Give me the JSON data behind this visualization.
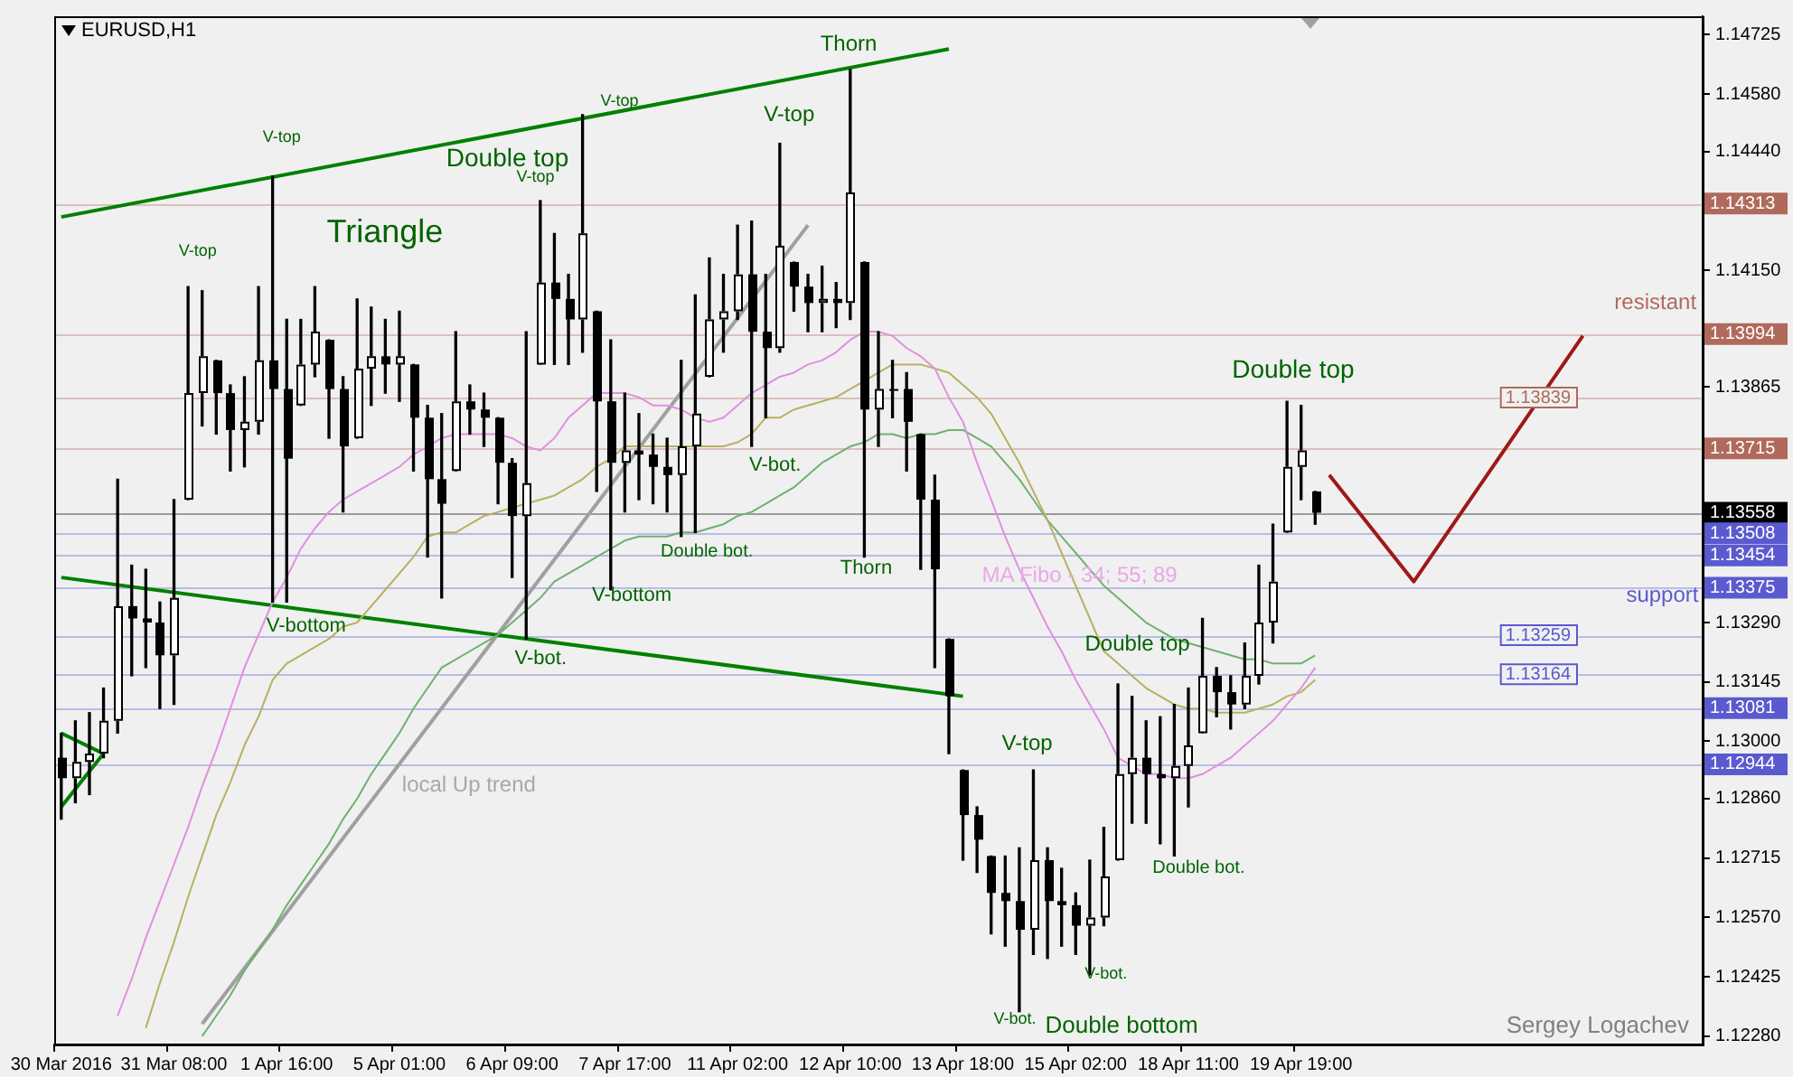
{
  "chart_data": {
    "type": "candlestick",
    "title": "EURUSD,H1",
    "categories": [
      "30 Mar 2016",
      null,
      null,
      null,
      null,
      null,
      null,
      null,
      "31 Mar 08:00",
      null,
      null,
      null,
      null,
      null,
      null,
      null,
      "1 Apr 16:00",
      null,
      null,
      null,
      null,
      null,
      null,
      null,
      "5 Apr 01:00",
      null,
      null,
      null,
      null,
      null,
      null,
      null,
      "6 Apr 09:00",
      null,
      null,
      null,
      null,
      null,
      null,
      null,
      "7 Apr 17:00",
      null,
      null,
      null,
      null,
      null,
      null,
      null,
      "11 Apr 02:00",
      null,
      null,
      null,
      null,
      null,
      null,
      null,
      "12 Apr 10:00",
      null,
      null,
      null,
      null,
      null,
      null,
      null,
      "13 Apr 18:00",
      null,
      null,
      null,
      null,
      null,
      null,
      null,
      "15 Apr 02:00",
      null,
      null,
      null,
      null,
      null,
      null,
      null,
      "18 Apr 11:00",
      null,
      null,
      null,
      null,
      null,
      null,
      null,
      "19 Apr 19:00",
      null,
      null,
      null,
      null,
      null,
      null,
      null,
      null,
      null,
      null,
      null,
      null,
      null,
      null,
      null,
      null,
      null,
      null,
      null,
      null,
      null,
      null,
      null,
      null,
      null,
      null,
      null,
      null
    ],
    "ohlc": [
      [
        1.1296,
        1.1302,
        1.1281,
        1.1291
      ],
      [
        1.1291,
        1.1305,
        1.1285,
        1.1295
      ],
      [
        1.1295,
        1.1307,
        1.1287,
        1.1297
      ],
      [
        1.1297,
        1.1313,
        1.1296,
        1.1305
      ],
      [
        1.1305,
        1.1364,
        1.1302,
        1.1333
      ],
      [
        1.1333,
        1.1343,
        1.1316,
        1.133
      ],
      [
        1.133,
        1.1342,
        1.1318,
        1.1329
      ],
      [
        1.1329,
        1.1334,
        1.1308,
        1.1321
      ],
      [
        1.1321,
        1.1359,
        1.1309,
        1.1335
      ],
      [
        1.1359,
        1.1411,
        1.1359,
        1.1385
      ],
      [
        1.1385,
        1.141,
        1.1377,
        1.1394
      ],
      [
        1.1393,
        1.1393,
        1.1375,
        1.1385
      ],
      [
        1.1385,
        1.1387,
        1.1366,
        1.1376
      ],
      [
        1.1376,
        1.1389,
        1.1367,
        1.1378
      ],
      [
        1.1378,
        1.1411,
        1.1375,
        1.1393
      ],
      [
        1.1393,
        1.1438,
        1.1334,
        1.1386
      ],
      [
        1.1386,
        1.1403,
        1.1334,
        1.1369
      ],
      [
        1.1382,
        1.1403,
        1.1382,
        1.1392
      ],
      [
        1.1392,
        1.1411,
        1.1389,
        1.14
      ],
      [
        1.1398,
        1.1398,
        1.1374,
        1.1386
      ],
      [
        1.1386,
        1.1389,
        1.1356,
        1.1372
      ],
      [
        1.1374,
        1.1408,
        1.1374,
        1.1391
      ],
      [
        1.1391,
        1.1406,
        1.1382,
        1.1394
      ],
      [
        1.1394,
        1.1403,
        1.1385,
        1.1392
      ],
      [
        1.1392,
        1.1405,
        1.1383,
        1.1394
      ],
      [
        1.1392,
        1.1392,
        1.1366,
        1.1379
      ],
      [
        1.1379,
        1.1382,
        1.1345,
        1.1364
      ],
      [
        1.1364,
        1.138,
        1.1335,
        1.1358
      ],
      [
        1.1366,
        1.14,
        1.1366,
        1.1383
      ],
      [
        1.1383,
        1.1387,
        1.1375,
        1.1381
      ],
      [
        1.1381,
        1.1385,
        1.1372,
        1.1379
      ],
      [
        1.1379,
        1.1379,
        1.1358,
        1.1368
      ],
      [
        1.1368,
        1.1369,
        1.134,
        1.1355
      ],
      [
        1.1355,
        1.14,
        1.1325,
        1.1363
      ],
      [
        1.1392,
        1.1432,
        1.1392,
        1.1412
      ],
      [
        1.1412,
        1.1424,
        1.1392,
        1.1408
      ],
      [
        1.1408,
        1.1414,
        1.1392,
        1.1403
      ],
      [
        1.1403,
        1.1453,
        1.1395,
        1.1424
      ],
      [
        1.1405,
        1.1405,
        1.1361,
        1.1383
      ],
      [
        1.1383,
        1.1398,
        1.1337,
        1.1368
      ],
      [
        1.1368,
        1.1385,
        1.1356,
        1.1371
      ],
      [
        1.1371,
        1.138,
        1.1359,
        1.137
      ],
      [
        1.137,
        1.1375,
        1.1358,
        1.1367
      ],
      [
        1.1367,
        1.1374,
        1.1356,
        1.1365
      ],
      [
        1.1365,
        1.1393,
        1.135,
        1.1372
      ],
      [
        1.1372,
        1.1409,
        1.1351,
        1.138
      ],
      [
        1.1389,
        1.1418,
        1.1389,
        1.1403
      ],
      [
        1.1403,
        1.1414,
        1.1395,
        1.1405
      ],
      [
        1.1405,
        1.1426,
        1.1403,
        1.1414
      ],
      [
        1.1414,
        1.1427,
        1.1372,
        1.14
      ],
      [
        1.14,
        1.1414,
        1.1379,
        1.1396
      ],
      [
        1.1396,
        1.1446,
        1.1395,
        1.1421
      ],
      [
        1.1417,
        1.1417,
        1.1405,
        1.1411
      ],
      [
        1.1411,
        1.1414,
        1.14,
        1.1407
      ],
      [
        1.1407,
        1.1416,
        1.14,
        1.1408
      ],
      [
        1.1408,
        1.1412,
        1.1401,
        1.1407
      ],
      [
        1.1407,
        1.1464,
        1.1403,
        1.1434
      ],
      [
        1.1417,
        1.1417,
        1.1345,
        1.1381
      ],
      [
        1.1381,
        1.14,
        1.1372,
        1.1386
      ],
      [
        1.1386,
        1.1393,
        1.1379,
        1.1386
      ],
      [
        1.1386,
        1.139,
        1.1366,
        1.1378
      ],
      [
        1.1375,
        1.1375,
        1.1342,
        1.1359
      ],
      [
        1.1359,
        1.1365,
        1.1318,
        1.1342
      ],
      [
        1.1325,
        1.1325,
        1.1297,
        1.1311
      ],
      [
        1.1293,
        1.1293,
        1.1271,
        1.1282
      ],
      [
        1.1282,
        1.1284,
        1.1268,
        1.1276
      ],
      [
        1.1272,
        1.1272,
        1.1253,
        1.1263
      ],
      [
        1.1263,
        1.1272,
        1.125,
        1.1261
      ],
      [
        1.1261,
        1.1274,
        1.1234,
        1.1254
      ],
      [
        1.1254,
        1.1293,
        1.1248,
        1.1271
      ],
      [
        1.1271,
        1.1274,
        1.1247,
        1.1261
      ],
      [
        1.1261,
        1.1269,
        1.125,
        1.126
      ],
      [
        1.126,
        1.1263,
        1.1248,
        1.1255
      ],
      [
        1.1255,
        1.1271,
        1.1243,
        1.1257
      ],
      [
        1.1257,
        1.1279,
        1.1255,
        1.1267
      ],
      [
        1.1271,
        1.1314,
        1.1271,
        1.1292
      ],
      [
        1.1292,
        1.1311,
        1.128,
        1.1296
      ],
      [
        1.1296,
        1.1305,
        1.128,
        1.1292
      ],
      [
        1.1292,
        1.1306,
        1.1275,
        1.1291
      ],
      [
        1.1291,
        1.1309,
        1.1272,
        1.1294
      ],
      [
        1.1294,
        1.1313,
        1.1284,
        1.1299
      ],
      [
        1.1302,
        1.133,
        1.1302,
        1.1316
      ],
      [
        1.1316,
        1.1318,
        1.1306,
        1.1312
      ],
      [
        1.1312,
        1.1316,
        1.1303,
        1.1309
      ],
      [
        1.1309,
        1.1324,
        1.1308,
        1.1316
      ],
      [
        1.1316,
        1.1343,
        1.1314,
        1.1329
      ],
      [
        1.1329,
        1.1353,
        1.1324,
        1.1339
      ],
      [
        1.1351,
        1.1383,
        1.1351,
        1.1367
      ],
      [
        1.1367,
        1.1382,
        1.1359,
        1.1371
      ],
      [
        1.1361,
        1.1361,
        1.1353,
        1.13558
      ],
      null,
      null,
      null,
      null,
      null,
      null,
      null,
      null,
      null,
      null,
      null,
      null,
      null,
      null,
      null,
      null,
      null,
      null,
      null,
      null,
      null,
      null,
      null,
      null,
      null,
      null,
      null
    ],
    "series": [
      {
        "type": "line",
        "color": "#e090e0",
        "values": [
          null,
          null,
          null,
          null,
          1.1233,
          1.1242,
          1.1252,
          1.1261,
          1.127,
          1.1279,
          1.1289,
          1.1298,
          1.1308,
          1.1318,
          1.1326,
          1.1334,
          1.134,
          1.1347,
          1.1352,
          1.1356,
          1.1359,
          1.1361,
          1.1363,
          1.1365,
          1.1367,
          1.137,
          1.1372,
          1.1374,
          1.1375,
          1.1375,
          1.1375,
          1.1375,
          1.1374,
          1.1372,
          1.1371,
          1.1374,
          1.1379,
          1.1382,
          1.1385,
          1.1385,
          1.1385,
          1.1384,
          1.1382,
          1.1382,
          1.1381,
          1.1379,
          1.1378,
          1.1379,
          1.1382,
          1.1385,
          1.1387,
          1.1389,
          1.139,
          1.1392,
          1.1393,
          1.1395,
          1.1398,
          1.14,
          1.14,
          1.1399,
          1.1396,
          1.1394,
          1.1391,
          1.1384,
          1.1378,
          1.1368,
          1.1359,
          1.135,
          1.1342,
          1.1335,
          1.1328,
          1.1322,
          1.1315,
          1.1309,
          1.1303,
          1.1296,
          1.1294,
          1.1292,
          1.1292,
          1.1291,
          1.1291,
          1.1292,
          1.1294,
          1.1296,
          1.1299,
          1.1302,
          1.1305,
          1.1309,
          1.1313,
          1.1318,
          null,
          null,
          null,
          null,
          null,
          null,
          null,
          null,
          null,
          null,
          null,
          null,
          null,
          null,
          null,
          null,
          null,
          null,
          null,
          null,
          null,
          null,
          null,
          null,
          null,
          null,
          null
        ]
      },
      {
        "type": "line",
        "color": "#b8b060",
        "values": [
          null,
          null,
          null,
          null,
          null,
          null,
          1.123,
          1.1241,
          1.1251,
          1.1262,
          1.1272,
          1.1282,
          1.129,
          1.1299,
          1.1306,
          1.1315,
          1.1319,
          1.1321,
          1.1323,
          1.1325,
          1.1328,
          1.1329,
          1.1333,
          1.1337,
          1.1341,
          1.1345,
          1.135,
          1.1351,
          1.1351,
          1.1353,
          1.1355,
          1.1356,
          1.1357,
          1.1358,
          1.1359,
          1.136,
          1.1362,
          1.1364,
          1.1367,
          1.1369,
          1.1372,
          1.1372,
          1.1372,
          1.1372,
          1.1372,
          1.1372,
          1.1372,
          1.1372,
          1.1373,
          1.1375,
          1.1379,
          1.1379,
          1.1381,
          1.1382,
          1.1383,
          1.1384,
          1.1386,
          1.1388,
          1.139,
          1.1392,
          1.1392,
          1.1392,
          1.1391,
          1.139,
          1.1387,
          1.1384,
          1.138,
          1.1374,
          1.1368,
          1.1361,
          1.1354,
          1.1346,
          1.1338,
          1.133,
          1.1322,
          1.1319,
          1.1316,
          1.1313,
          1.1311,
          1.1309,
          1.1308,
          1.1308,
          1.1307,
          1.1307,
          1.1307,
          1.1308,
          1.1309,
          1.1311,
          1.1312,
          1.1315,
          null,
          null,
          null,
          null,
          null,
          null,
          null,
          null,
          null,
          null,
          null,
          null,
          null,
          null,
          null,
          null,
          null,
          null,
          null,
          null,
          null,
          null,
          null,
          null,
          null,
          null,
          null
        ]
      },
      {
        "type": "line",
        "color": "#70b070",
        "values": [
          null,
          null,
          null,
          null,
          null,
          null,
          null,
          null,
          null,
          null,
          1.1228,
          1.1233,
          1.1238,
          1.1244,
          1.1249,
          1.1254,
          1.126,
          1.1265,
          1.127,
          1.1275,
          1.1281,
          1.1286,
          1.1292,
          1.1297,
          1.1302,
          1.1308,
          1.1313,
          1.1318,
          1.132,
          1.1322,
          1.1324,
          1.1326,
          1.1329,
          1.1332,
          1.1335,
          1.1339,
          1.1341,
          1.1343,
          1.1345,
          1.1347,
          1.1349,
          1.135,
          1.135,
          1.135,
          1.1351,
          1.1351,
          1.1352,
          1.1353,
          1.1355,
          1.1356,
          1.1358,
          1.136,
          1.1362,
          1.1365,
          1.1368,
          1.137,
          1.1372,
          1.1373,
          1.1375,
          1.1375,
          1.1374,
          1.1375,
          1.1375,
          1.1376,
          1.1376,
          1.1374,
          1.1372,
          1.1368,
          1.1364,
          1.1359,
          1.1354,
          1.135,
          1.1346,
          1.1342,
          1.1338,
          1.1335,
          1.1332,
          1.1329,
          1.1327,
          1.1325,
          1.1324,
          1.1323,
          1.1322,
          1.1321,
          1.132,
          1.132,
          1.1319,
          1.1319,
          1.1319,
          1.1321,
          null,
          null,
          null,
          null,
          null,
          null,
          null,
          null,
          null,
          null,
          null,
          null,
          null,
          null,
          null,
          null,
          null,
          null,
          null,
          null,
          null,
          null,
          null,
          null,
          null,
          null,
          null
        ]
      },
      {
        "type": "line",
        "color": "#008000",
        "values": [
          1.1428,
          null,
          null,
          null,
          null,
          null,
          null,
          null,
          null,
          null,
          null,
          null,
          null,
          null,
          null,
          null,
          null,
          null,
          null,
          null,
          null,
          null,
          null,
          null,
          null,
          null,
          null,
          null,
          null,
          null,
          null,
          null,
          null,
          null,
          null,
          null,
          null,
          null,
          null,
          null,
          null,
          null,
          null,
          null,
          null,
          null,
          null,
          null,
          null,
          null,
          null,
          null,
          null,
          null,
          null,
          null,
          null,
          null,
          null,
          null,
          null,
          null,
          null,
          1.1469,
          null,
          null,
          null,
          null,
          null,
          null,
          null,
          null,
          null,
          null,
          null,
          null,
          null,
          null,
          null,
          null,
          null,
          null,
          null,
          null,
          null,
          null,
          null,
          null,
          null,
          null,
          null,
          null,
          null,
          null,
          null,
          null,
          null,
          null,
          null,
          null,
          null,
          null,
          null,
          null,
          null,
          null,
          null,
          null,
          null,
          null,
          null,
          null,
          null,
          null,
          null,
          null,
          null
        ]
      },
      {
        "type": "line",
        "color": "#008000",
        "values": [
          1.134,
          null,
          null,
          null,
          null,
          null,
          null,
          null,
          null,
          null,
          null,
          null,
          null,
          null,
          null,
          null,
          null,
          null,
          null,
          null,
          null,
          null,
          null,
          null,
          null,
          null,
          null,
          null,
          null,
          null,
          null,
          null,
          null,
          null,
          null,
          null,
          null,
          null,
          null,
          null,
          null,
          null,
          null,
          null,
          null,
          null,
          null,
          null,
          null,
          null,
          null,
          null,
          null,
          null,
          null,
          null,
          null,
          null,
          null,
          null,
          null,
          null,
          null,
          null,
          1.1311,
          null,
          null,
          null,
          null,
          null,
          null,
          null,
          null,
          null,
          null,
          null,
          null,
          null,
          null,
          null,
          null,
          null,
          null,
          null,
          null,
          null,
          null,
          null,
          null,
          null,
          null,
          null,
          null,
          null,
          null,
          null,
          null,
          null,
          null,
          null,
          null,
          null,
          null,
          null,
          null,
          null,
          null,
          null,
          null,
          null,
          null,
          null,
          null,
          null,
          null,
          null,
          null
        ]
      },
      {
        "type": "line",
        "color": "#008000",
        "values": [
          1.1302,
          null,
          null,
          1.1297,
          null,
          null,
          null,
          null,
          null,
          null,
          null,
          null,
          null,
          null,
          null,
          null,
          null,
          null,
          null,
          null,
          null,
          null,
          null,
          null,
          null,
          null,
          null,
          null,
          null,
          null,
          null,
          null,
          null,
          null,
          null,
          null,
          null,
          null,
          null,
          null,
          null,
          null,
          null,
          null,
          null,
          null,
          null,
          null,
          null,
          null,
          null,
          null,
          null,
          null,
          null,
          null,
          null,
          null,
          null,
          null,
          null,
          null,
          null,
          null,
          null,
          null,
          null,
          null,
          null,
          null,
          null,
          null,
          null,
          null,
          null,
          null,
          null,
          null,
          null,
          null,
          null,
          null,
          null,
          null,
          null,
          null,
          null,
          null,
          null,
          null,
          null,
          null,
          null,
          null,
          null,
          null,
          null,
          null,
          null,
          null,
          null,
          null,
          null,
          null,
          null,
          null,
          null,
          null,
          null,
          null,
          null,
          null,
          null,
          null,
          null,
          null,
          null
        ]
      },
      {
        "type": "line",
        "color": "#008000",
        "values": [
          1.1284,
          null,
          null,
          1.1297,
          null,
          null,
          null,
          null,
          null,
          null,
          null,
          null,
          null,
          null,
          null,
          null,
          null,
          null,
          null,
          null,
          null,
          null,
          null,
          null,
          null,
          null,
          null,
          null,
          null,
          null,
          null,
          null,
          null,
          null,
          null,
          null,
          null,
          null,
          null,
          null,
          null,
          null,
          null,
          null,
          null,
          null,
          null,
          null,
          null,
          null,
          null,
          null,
          null,
          null,
          null,
          null,
          null,
          null,
          null,
          null,
          null,
          null,
          null,
          null,
          null,
          null,
          null,
          null,
          null,
          null,
          null,
          null,
          null,
          null,
          null,
          null,
          null,
          null,
          null,
          null,
          null,
          null,
          null,
          null,
          null,
          null,
          null,
          null,
          null,
          null,
          null,
          null,
          null,
          null,
          null,
          null,
          null,
          null,
          null,
          null,
          null,
          null,
          null,
          null,
          null,
          null,
          null,
          null,
          null,
          null,
          null,
          null,
          null,
          null,
          null,
          null,
          null
        ]
      },
      {
        "type": "line",
        "color": "#a0a0a0",
        "values": [
          null,
          null,
          null,
          null,
          null,
          null,
          null,
          null,
          null,
          null,
          1.1231,
          null,
          null,
          null,
          null,
          null,
          null,
          null,
          null,
          null,
          null,
          null,
          null,
          null,
          null,
          null,
          null,
          null,
          null,
          null,
          null,
          null,
          null,
          null,
          null,
          null,
          null,
          null,
          null,
          null,
          null,
          null,
          null,
          null,
          null,
          null,
          null,
          null,
          null,
          null,
          null,
          null,
          null,
          1.1426,
          null,
          null,
          null,
          null,
          null,
          null,
          null,
          null,
          null,
          null,
          null,
          null,
          null,
          null,
          null,
          null,
          null,
          null,
          null,
          null,
          null,
          null,
          null,
          null,
          null,
          null,
          null,
          null,
          null,
          null,
          null,
          null,
          null,
          null,
          null,
          null,
          null,
          null,
          null,
          null,
          null,
          null,
          null,
          null,
          null,
          null,
          null,
          null,
          null,
          null,
          null,
          null,
          null,
          null,
          null,
          null,
          null,
          null,
          null,
          null,
          null,
          null,
          null
        ]
      },
      {
        "type": "line",
        "color": "#a01818",
        "values": [
          null,
          null,
          null,
          null,
          null,
          null,
          null,
          null,
          null,
          null,
          null,
          null,
          null,
          null,
          null,
          null,
          null,
          null,
          null,
          null,
          null,
          null,
          null,
          null,
          null,
          null,
          null,
          null,
          null,
          null,
          null,
          null,
          null,
          null,
          null,
          null,
          null,
          null,
          null,
          null,
          null,
          null,
          null,
          null,
          null,
          null,
          null,
          null,
          null,
          null,
          null,
          null,
          null,
          null,
          null,
          null,
          null,
          null,
          null,
          null,
          null,
          null,
          null,
          null,
          null,
          null,
          null,
          null,
          null,
          null,
          null,
          null,
          null,
          null,
          null,
          null,
          null,
          null,
          null,
          null,
          null,
          null,
          null,
          null,
          null,
          null,
          null,
          null,
          null,
          null,
          1.1365,
          null,
          null,
          null,
          null,
          null,
          1.1339,
          null,
          null,
          null,
          null,
          null,
          null,
          null,
          null,
          null,
          null,
          null,
          1.1399,
          null,
          null,
          null,
          null,
          null,
          null,
          null,
          null
        ]
      }
    ],
    "ylim": [
      1.1226,
      1.1477
    ],
    "yticks": [
      1.14725,
      {
        "value": 1.1458,
        "label": "1.14580"
      },
      {
        "value": 1.1444,
        "label": "1.14440"
      },
      {
        "value": 1.1415,
        "label": "1.14150"
      },
      1.13865,
      {
        "value": 1.1329,
        "label": "1.13290"
      },
      1.13145,
      {
        "value": 1.13,
        "label": "1.13000"
      },
      {
        "value": 1.1286,
        "label": "1.12860"
      },
      1.12715,
      {
        "value": 1.1257,
        "label": "1.12570"
      },
      1.12425,
      {
        "value": 1.1228,
        "label": "1.12280"
      }
    ],
    "ref_lines": [
      {
        "axis": "y",
        "value": 1.14313,
        "label": "1.14313",
        "color": "#b06a5c"
      },
      {
        "axis": "y",
        "value": 1.13994,
        "label": "1.13994",
        "color": "#b06a5c"
      },
      {
        "axis": "y",
        "value": 1.13839,
        "label": "1.13839",
        "color": "#b06a5c"
      },
      {
        "axis": "y",
        "value": 1.13715,
        "label": "1.13715",
        "color": "#b06a5c"
      },
      {
        "axis": "y",
        "value": 1.13558,
        "label": "1.13558",
        "color": "#000000"
      },
      {
        "axis": "y",
        "value": 1.13508,
        "label": "1.13508",
        "color": "#5a5ad0"
      },
      {
        "axis": "y",
        "value": 1.13454,
        "label": "1.13454",
        "color": "#5a5ad0"
      },
      {
        "axis": "y",
        "value": 1.13375,
        "label": "1.13375",
        "color": "#5a5ad0"
      },
      {
        "axis": "y",
        "value": 1.13259,
        "label": "1.13259",
        "color": "#5a5ad0"
      },
      {
        "axis": "y",
        "value": 1.13164,
        "label": "1.13164",
        "color": "#5a5ad0"
      },
      {
        "axis": "y",
        "value": 1.13081,
        "label": "1.13081",
        "color": "#5a5ad0"
      },
      {
        "axis": "y",
        "value": 1.12944,
        "label": "1.12944",
        "color": "#5a5ad0"
      }
    ],
    "annotations": [
      "Triangle",
      "V-top",
      "V-top",
      "V-top",
      "Double top",
      "V-top",
      "V-top",
      "Thorn",
      "V-bottom",
      "V-bot.",
      "V-bottom",
      "Double bot.",
      "V-bot.",
      "Thorn",
      "local Up trend",
      "MA Fibo - 34; 55; 89",
      "Double top",
      "V-top",
      "Double bot.",
      "V-bot.",
      "V-bot.",
      "Double bottom",
      "Double top",
      "resistant",
      "support",
      "Sergey Logachev"
    ],
    "legend": false,
    "marker": "none",
    "line_style": "solid"
  }
}
